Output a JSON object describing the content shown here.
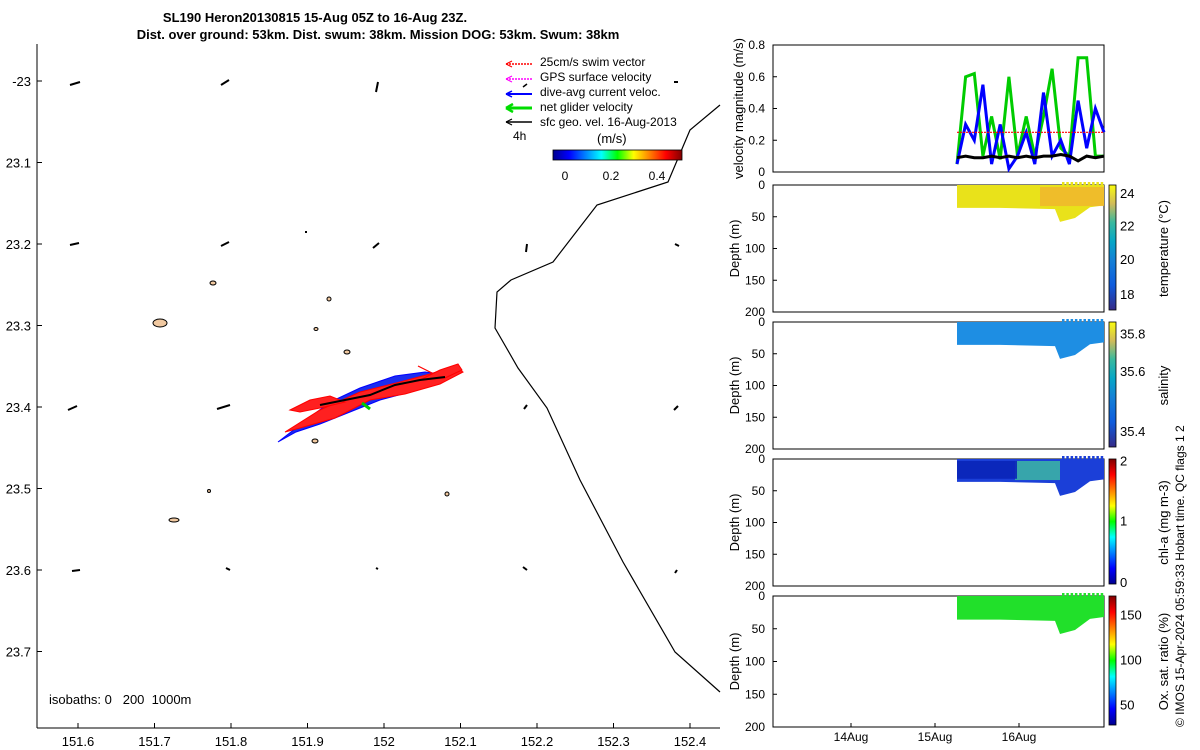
{
  "title": {
    "line1": "SL190 Heron20130815 15-Aug 05Z to 16-Aug 23Z.",
    "line2": "Dist. over ground: 53km. Dist. swum: 38km. Mission DOG: 53km. Swum: 38km"
  },
  "map": {
    "x_ticks": [
      "151.6",
      "151.7",
      "151.8",
      "151.9",
      "152",
      "152.1",
      "152.2",
      "152.3",
      "152.4"
    ],
    "y_ticks": [
      "-23",
      "23.1",
      "23.2",
      "23.3",
      "23.4",
      "23.5",
      "23.6",
      "23.7"
    ],
    "legend": [
      {
        "label": "25cm/s swim vector",
        "color": "#ff0000"
      },
      {
        "label": "GPS surface velocity",
        "color": "#ff00ff"
      },
      {
        "label": "dive-avg current veloc.",
        "color": "#0000ff"
      },
      {
        "label": "net glider velocity",
        "color": "#00cc00"
      },
      {
        "label": "sfc geo. vel. 16-Aug-2013",
        "color": "#000000"
      }
    ],
    "legend_extra": "4h",
    "colorbar_title": "(m/s)",
    "colorbar_ticks": [
      "0",
      "0.2",
      "0.4"
    ],
    "isobath_label": "isobaths: 0   200  1000m"
  },
  "panels": [
    {
      "ylabel": "velocity magnitude (m/s)",
      "y_ticks": [
        "0",
        "0.2",
        "0.4",
        "0.6",
        "0.8"
      ]
    },
    {
      "ylabel": "Depth (m)",
      "y_ticks": [
        "0",
        "50",
        "100",
        "150",
        "200"
      ],
      "cbar_label": "temperature (°C)",
      "cbar_ticks": [
        "18",
        "20",
        "22",
        "24"
      ]
    },
    {
      "ylabel": "Depth (m)",
      "y_ticks": [
        "0",
        "50",
        "100",
        "150",
        "200"
      ],
      "cbar_label": "salinity",
      "cbar_ticks": [
        "35.4",
        "35.6",
        "35.8"
      ]
    },
    {
      "ylabel": "Depth (m)",
      "y_ticks": [
        "0",
        "50",
        "100",
        "150",
        "200"
      ],
      "cbar_label": "chl-a (mg m-3)",
      "cbar_ticks": [
        "0",
        "1",
        "2"
      ]
    },
    {
      "ylabel": "Depth (m)",
      "y_ticks": [
        "0",
        "50",
        "100",
        "150",
        "200"
      ],
      "cbar_label": "Ox. sat. ratio (%)",
      "cbar_ticks": [
        "50",
        "100",
        "150"
      ]
    }
  ],
  "time_ticks": [
    "14Aug",
    "15Aug",
    "16Aug"
  ],
  "side_note": "© IMOS 15-Apr-2024 05:59:33 Hobart time. QC flags 1  2",
  "chart_data": [
    {
      "type": "line",
      "title": "",
      "ylabel": "velocity magnitude (m/s)",
      "ylim": [
        0,
        0.8
      ],
      "x": [
        "15.3",
        "15.4",
        "15.5",
        "15.6",
        "15.7",
        "15.8",
        "15.9",
        "16.0",
        "16.1",
        "16.2",
        "16.3",
        "16.4",
        "16.5",
        "16.6",
        "16.7",
        "16.8",
        "16.9",
        "17.0"
      ],
      "series": [
        {
          "name": "net glider velocity",
          "color": "#00cc00",
          "values": [
            0.05,
            0.6,
            0.62,
            0.1,
            0.35,
            0.08,
            0.6,
            0.1,
            0.35,
            0.1,
            0.35,
            0.65,
            0.15,
            0.1,
            0.72,
            0.72,
            0.1,
            0.1
          ]
        },
        {
          "name": "dive-avg current veloc.",
          "color": "#0000ff",
          "values": [
            0.05,
            0.3,
            0.2,
            0.55,
            0.05,
            0.3,
            0.02,
            0.1,
            0.25,
            0.05,
            0.5,
            0.1,
            0.2,
            0.05,
            0.45,
            0.15,
            0.4,
            0.25
          ]
        },
        {
          "name": "25cm/s swim vector",
          "color": "#ff0000",
          "values": [
            0.25,
            0.25,
            0.25,
            0.25,
            0.25,
            0.25,
            0.25,
            0.25,
            0.25,
            0.25,
            0.25,
            0.25,
            0.25,
            0.25,
            0.25,
            0.25,
            0.25,
            0.25
          ]
        },
        {
          "name": "sfc geo. vel. 16-Aug-2013",
          "color": "#000000",
          "values": [
            0.09,
            0.1,
            0.09,
            0.09,
            0.1,
            0.09,
            0.1,
            0.09,
            0.1,
            0.09,
            0.1,
            0.1,
            0.11,
            0.1,
            0.07,
            0.1,
            0.09,
            0.1
          ]
        }
      ]
    },
    {
      "type": "heatmap",
      "ylabel": "Depth (m)",
      "colorbar": "temperature (°C)",
      "value_range": [
        17.5,
        24.2
      ],
      "typical_value": 23.5
    },
    {
      "type": "heatmap",
      "ylabel": "Depth (m)",
      "colorbar": "salinity",
      "value_range": [
        35.3,
        35.88
      ],
      "typical_value": 35.55
    },
    {
      "type": "heatmap",
      "ylabel": "Depth (m)",
      "colorbar": "chl-a (mg m-3)",
      "value_range": [
        0,
        2
      ],
      "typical_value": 0.3
    },
    {
      "type": "heatmap",
      "ylabel": "Depth (m)",
      "colorbar": "Ox. sat. ratio (%)",
      "value_range": [
        25,
        175
      ],
      "typical_value": 100
    }
  ]
}
